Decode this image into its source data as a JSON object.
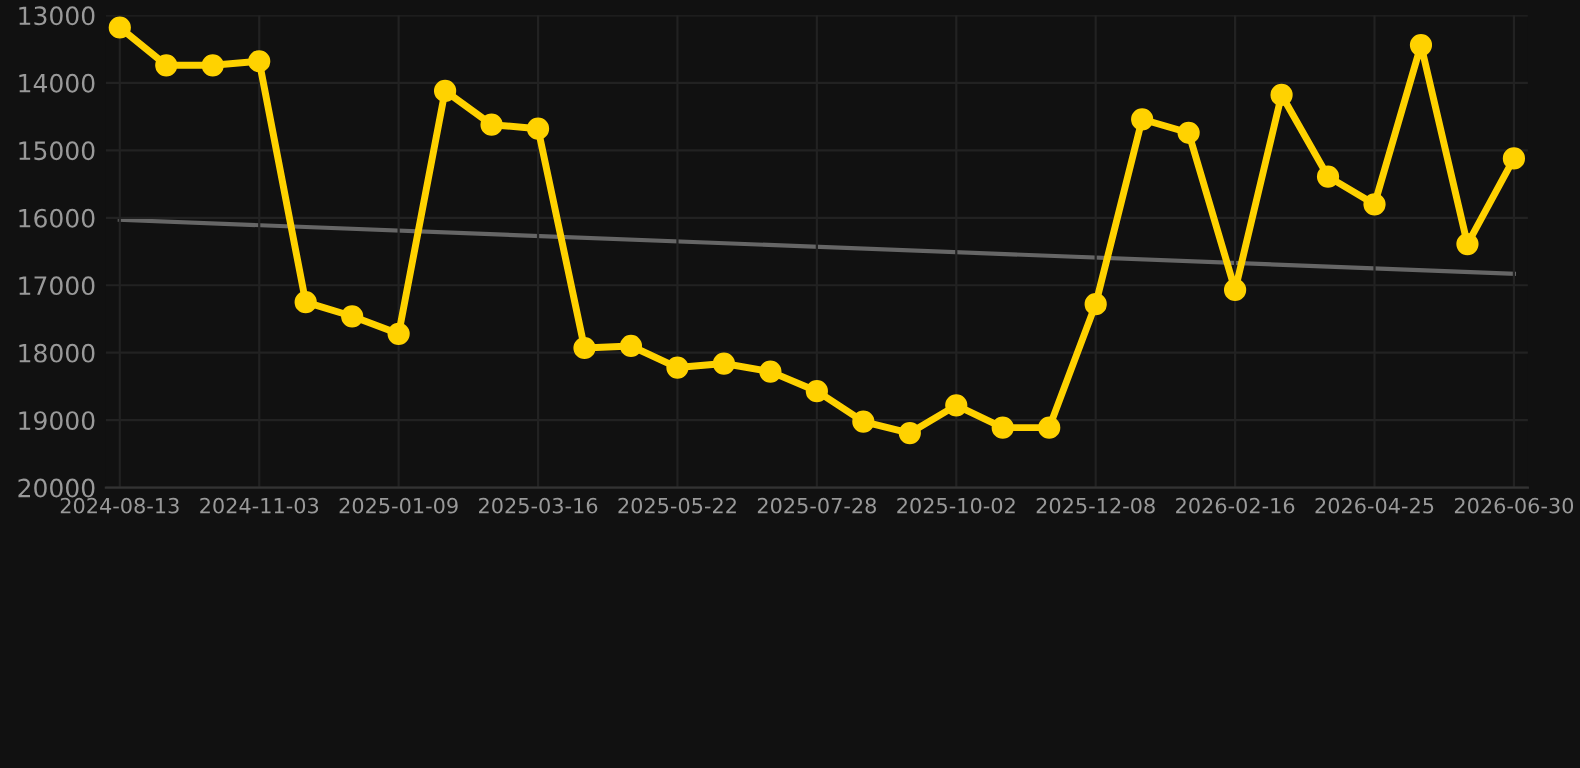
{
  "chart_data": {
    "type": "line",
    "categories": [
      "2024-08-13",
      null,
      null,
      "2024-11-03",
      null,
      null,
      "2025-01-09",
      null,
      null,
      "2025-03-16",
      null,
      null,
      "2025-05-22",
      null,
      null,
      "2025-07-28",
      null,
      null,
      "2025-10-02",
      null,
      null,
      "2025-12-08",
      null,
      null,
      "2026-02-16",
      null,
      null,
      "2026-04-25",
      null,
      null,
      "2026-06-30"
    ],
    "series": [
      {
        "color": "#ffd200",
        "marker": "circle",
        "values": [
          13180,
          13740,
          13740,
          13680,
          17250,
          17460,
          17720,
          14120,
          14620,
          14680,
          17930,
          17900,
          18220,
          18160,
          18280,
          18570,
          19020,
          19190,
          18780,
          19110,
          19110,
          17280,
          14540,
          14740,
          17070,
          14180,
          15390,
          15800,
          13440,
          16390,
          15120
        ]
      },
      {
        "type": "line",
        "color": "#666666",
        "marker": "none",
        "values": [
          16030,
          null,
          null,
          null,
          null,
          null,
          null,
          null,
          null,
          null,
          null,
          null,
          null,
          null,
          null,
          null,
          null,
          null,
          null,
          null,
          null,
          null,
          null,
          null,
          null,
          null,
          null,
          null,
          null,
          null,
          16830
        ]
      }
    ],
    "ylim": [
      20000,
      13000
    ],
    "yticks": [
      13000,
      14000,
      15000,
      16000,
      17000,
      18000,
      19000,
      20000
    ],
    "grid": true,
    "legend": false
  }
}
